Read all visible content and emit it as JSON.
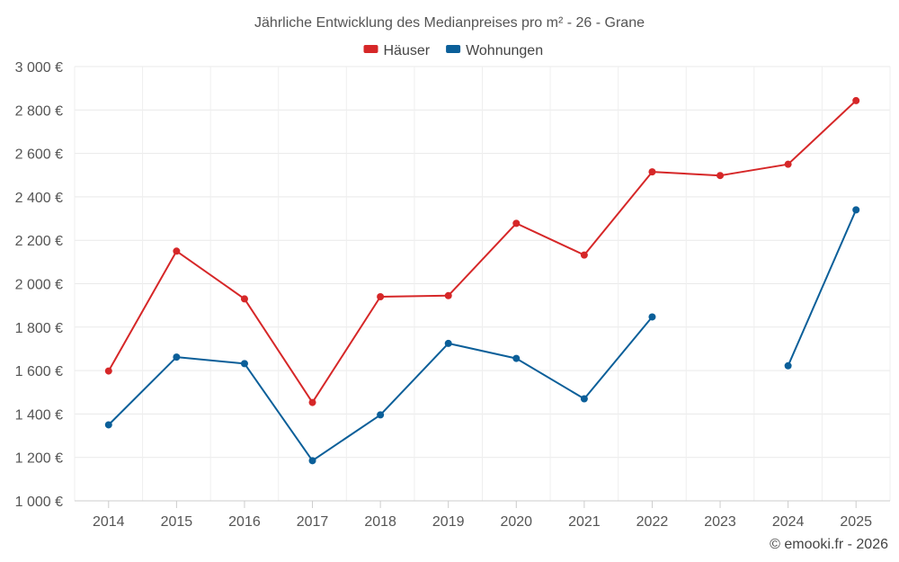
{
  "chart_data": {
    "type": "line",
    "title": "Jährliche Entwicklung des Medianpreises pro m² - 26 - Grane",
    "x": [
      "2014",
      "2015",
      "2016",
      "2017",
      "2018",
      "2019",
      "2020",
      "2021",
      "2022",
      "2023",
      "2024",
      "2025"
    ],
    "series": [
      {
        "name": "Häuser",
        "color": "#d62728",
        "values": [
          1598,
          2150,
          1930,
          1453,
          1940,
          1945,
          2278,
          2132,
          2515,
          2498,
          2550,
          2843
        ]
      },
      {
        "name": "Wohnungen",
        "color": "#0b5f99",
        "values": [
          1350,
          1662,
          1632,
          1185,
          1396,
          1725,
          1656,
          1470,
          1847,
          null,
          1622,
          2340
        ]
      }
    ],
    "ylim": [
      1000,
      3000
    ],
    "y_ticks": [
      1000,
      1200,
      1400,
      1600,
      1800,
      2000,
      2200,
      2400,
      2600,
      2800,
      3000
    ],
    "y_tick_labels": [
      "1 000 €",
      "1 200 €",
      "1 400 €",
      "1 600 €",
      "1 800 €",
      "2 000 €",
      "2 200 €",
      "2 400 €",
      "2 600 €",
      "2 800 €",
      "3 000 €"
    ],
    "grid": true,
    "legend_position": "top-center",
    "credit": "© emooki.fr - 2026"
  }
}
